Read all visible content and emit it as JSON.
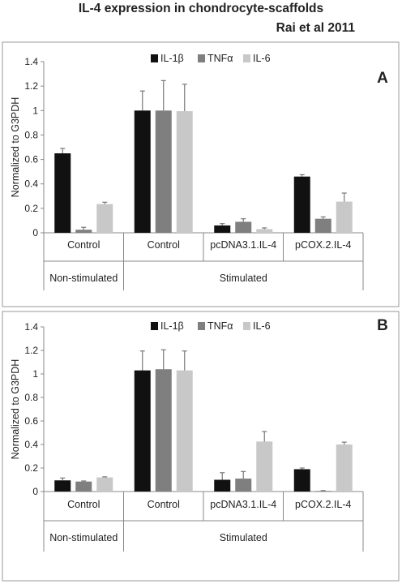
{
  "figure": {
    "title": "IL-4 expression in chondrocyte-scaffolds",
    "subtitle": "Rai et al 2011"
  },
  "colors": {
    "series": [
      "#111111",
      "#7f7f7f",
      "#c8c8c8"
    ],
    "error_bar": "#777777",
    "panel_border": "#999999",
    "axis": "#888888",
    "text": "#222222"
  },
  "chart_data": [
    {
      "type": "bar",
      "panel_label": "A",
      "categories": [
        "Control",
        "Control",
        "pcDNA3.1.IL-4",
        "pCOX.2.IL-4"
      ],
      "groups": [
        {
          "label": "Non-stimulated",
          "categories": [
            0
          ]
        },
        {
          "label": "Stimulated",
          "categories": [
            1,
            2,
            3
          ]
        }
      ],
      "series": [
        {
          "name": "IL-1β",
          "values": [
            0.65,
            1.0,
            0.06,
            0.46
          ],
          "errors": [
            0.04,
            0.16,
            0.015,
            0.015
          ]
        },
        {
          "name": "TNFα",
          "values": [
            0.025,
            1.0,
            0.09,
            0.115
          ],
          "errors": [
            0.02,
            0.245,
            0.025,
            0.015
          ]
        },
        {
          "name": "IL-6",
          "values": [
            0.235,
            0.995,
            0.03,
            0.255
          ],
          "errors": [
            0.015,
            0.22,
            0.01,
            0.07
          ]
        }
      ],
      "ylabel": "Normalized to G3PDH",
      "ylim": [
        0,
        1.4
      ],
      "yticks": [
        "0",
        "0.2",
        "0.4",
        "0.6",
        "0.8",
        "1",
        "1.2",
        "1.4"
      ],
      "legend": "top-center",
      "grid": false
    },
    {
      "type": "bar",
      "panel_label": "B",
      "categories": [
        "Control",
        "Control",
        "pcDNA3.1.IL-4",
        "pCOX.2.IL-4"
      ],
      "groups": [
        {
          "label": "Non-stimulated",
          "categories": [
            0
          ]
        },
        {
          "label": "Stimulated",
          "categories": [
            1,
            2,
            3
          ]
        }
      ],
      "series": [
        {
          "name": "IL-1β",
          "values": [
            0.095,
            1.03,
            0.1,
            0.19
          ],
          "errors": [
            0.02,
            0.165,
            0.06,
            0.01
          ]
        },
        {
          "name": "TNFα",
          "values": [
            0.085,
            1.04,
            0.11,
            0.005
          ],
          "errors": [
            0.005,
            0.165,
            0.06,
            0.003
          ]
        },
        {
          "name": "IL-6",
          "values": [
            0.12,
            1.03,
            0.425,
            0.4
          ],
          "errors": [
            0.005,
            0.165,
            0.085,
            0.02
          ]
        }
      ],
      "ylabel": "Normalized to G3PDH",
      "ylim": [
        0,
        1.4
      ],
      "yticks": [
        "0",
        "0.2",
        "0.4",
        "0.6",
        "0.8",
        "1",
        "1.2",
        "1.4"
      ],
      "legend": "top-center",
      "grid": false
    }
  ]
}
